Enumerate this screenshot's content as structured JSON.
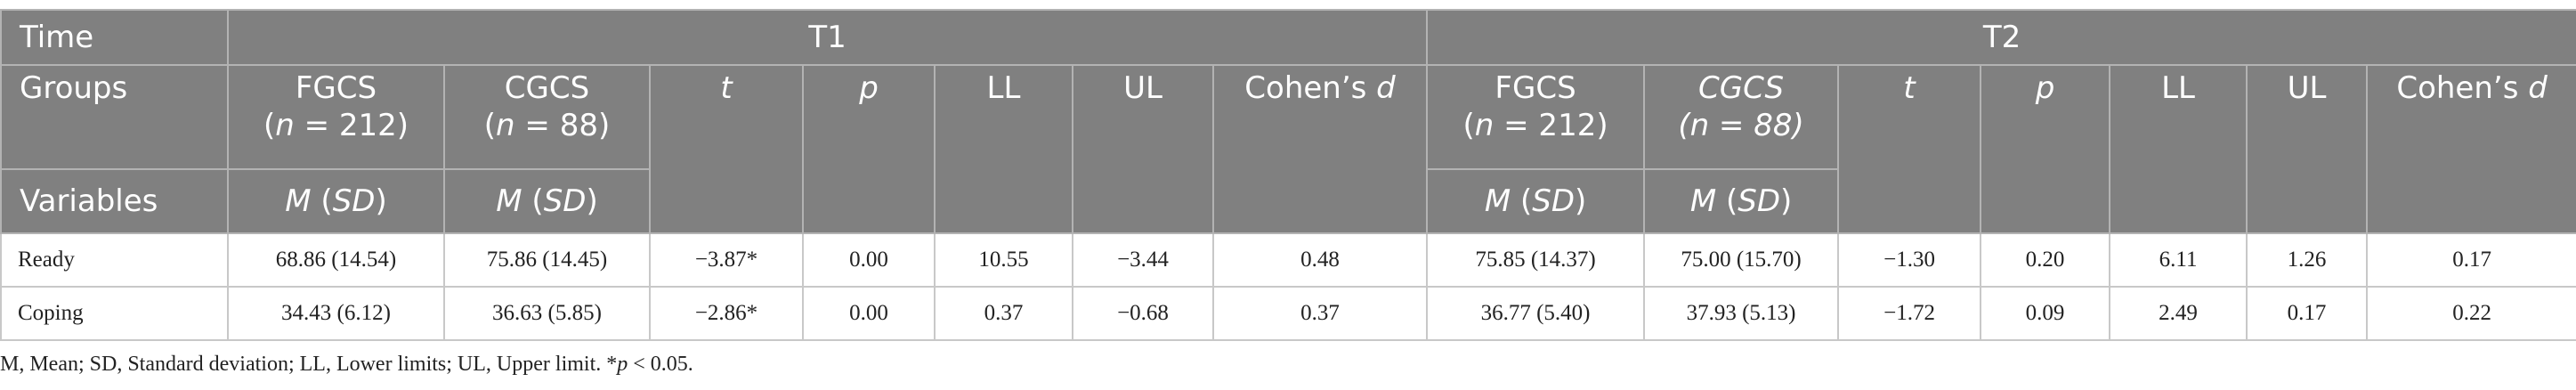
{
  "table": {
    "header": [
      [
        "Time",
        "T1",
        "T2"
      ],
      [
        "Groups",
        [
          [
            "FGCS"
          ],
          [
            "(",
            {
              "em": "n"
            },
            " = 212)"
          ]
        ],
        [
          [
            "CGCS"
          ],
          [
            "(",
            {
              "em": "n"
            },
            " = 88)"
          ]
        ],
        [
          [
            {
              "em": "t"
            }
          ]
        ],
        [
          [
            {
              "em": "p"
            }
          ]
        ],
        "LL",
        "UL",
        [
          [
            "Cohen’s ",
            {
              "em": "d"
            }
          ]
        ],
        [
          [
            "FGCS"
          ],
          [
            "(",
            {
              "em": "n"
            },
            " = 212)"
          ]
        ],
        [
          [
            {
              "em": "CGCS"
            }
          ],
          [
            {
              "em": "(n = 88)"
            }
          ]
        ],
        [
          [
            {
              "em": "t"
            }
          ]
        ],
        [
          [
            {
              "em": "p"
            }
          ]
        ],
        "LL",
        "UL",
        [
          [
            "Cohen’s ",
            {
              "em": "d"
            }
          ]
        ]
      ],
      [
        "Variables",
        [
          [
            {
              "em": "M"
            },
            " (",
            {
              "em": "SD"
            },
            ")"
          ]
        ],
        [
          [
            {
              "em": "M"
            },
            " (",
            {
              "em": "SD"
            },
            ")"
          ]
        ],
        [
          [
            {
              "em": "M"
            },
            " (",
            {
              "em": "SD"
            },
            ")"
          ]
        ],
        [
          [
            {
              "em": "M"
            },
            " (",
            {
              "em": "SD"
            },
            ")"
          ]
        ]
      ]
    ],
    "rows": [
      [
        "Ready",
        "68.86 (14.54)",
        "75.86 (14.45)",
        "−3.87*",
        "0.00",
        "10.55",
        "−3.44",
        "0.48",
        "75.85 (14.37)",
        "75.00 (15.70)",
        "−1.30",
        "0.20",
        "6.11",
        "1.26",
        "0.17"
      ],
      [
        "Coping",
        "34.43 (6.12)",
        "36.63 (5.85)",
        "−2.86*",
        "0.00",
        "0.37",
        "−0.68",
        "0.37",
        "36.77 (5.40)",
        "37.93 (5.13)",
        "−1.72",
        "0.09",
        "2.49",
        "0.17",
        "0.22"
      ]
    ]
  },
  "footnote": [
    [
      "M, Mean; SD, Standard deviation; LL, Lower limits; UL, Upper limit. *",
      {
        "em": "p"
      },
      " < 0.05."
    ]
  ]
}
